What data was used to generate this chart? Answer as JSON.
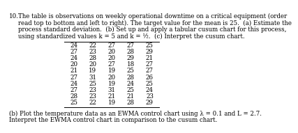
{
  "question_number": "10.",
  "line1": "The table is observations on weekly operational downtime on a critical equipment (order",
  "line2": "read top to bottom and left to right). The target value for the mean is 25.  (a) Estimate the",
  "line3": "process standard deviation.  (b) Set up and apply a tabular cusum chart for this process,",
  "line4": "using standardized values k = 5 and k = ½.  (c) Interpret the cusum chart.",
  "table": [
    [
      24,
      22,
      27,
      27,
      25
    ],
    [
      27,
      23,
      20,
      28,
      29
    ],
    [
      24,
      28,
      20,
      29,
      21
    ],
    [
      20,
      20,
      27,
      18,
      27
    ],
    [
      21,
      19,
      19,
      25,
      27
    ],
    [
      27,
      31,
      20,
      28,
      26
    ],
    [
      24,
      25,
      19,
      24,
      25
    ],
    [
      27,
      23,
      31,
      25,
      24
    ],
    [
      28,
      23,
      21,
      21,
      23
    ],
    [
      25,
      22,
      19,
      28,
      29
    ]
  ],
  "bottom_line1": "(b) Plot the temperature data as an EWMA control chart using λ = 0.1 and L = 2.7.",
  "bottom_line2": "Interpret the EWMA control chart in comparison to the cusum chart.",
  "bg_color": "#ffffff",
  "text_color": "#000000",
  "font_size": 6.2,
  "table_font_size": 6.2
}
